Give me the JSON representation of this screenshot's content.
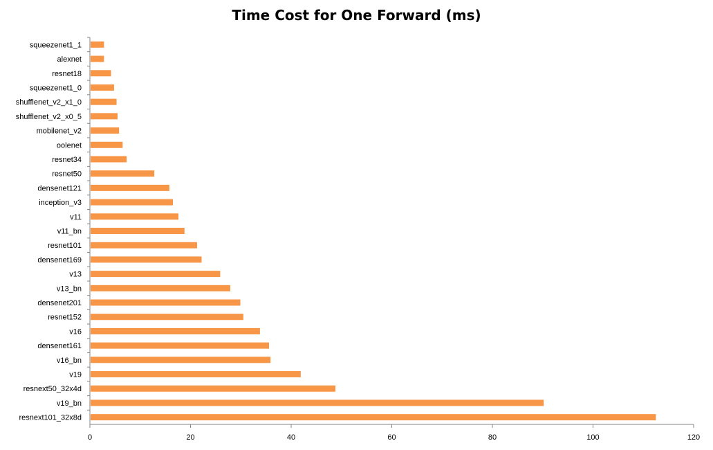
{
  "chart_data": {
    "type": "bar",
    "orientation": "horizontal",
    "title": "Time Cost for One Forward (ms)",
    "xlabel": "",
    "ylabel": "",
    "categories": [
      "squeezenet1_1",
      "alexnet",
      "resnet18",
      "squeezenet1_0",
      "shufflenet_v2_x1_0",
      "shufflenet_v2_x0_5",
      "mobilenet_v2",
      "oolenet",
      "resnet34",
      "resnet50",
      "densenet121",
      "inception_v3",
      "v11",
      "v11_bn",
      "resnet101",
      "densenet169",
      "v13",
      "v13_bn",
      "densenet201",
      "resnet152",
      "v16",
      "densenet161",
      "v16_bn",
      "v19",
      "resnext50_32x4d",
      "v19_bn",
      "resnext101_32x8d"
    ],
    "values": [
      2.8,
      2.8,
      4.2,
      4.8,
      5.3,
      5.5,
      5.8,
      6.5,
      7.3,
      12.8,
      15.8,
      16.5,
      17.6,
      18.8,
      21.3,
      22.2,
      25.9,
      27.9,
      29.9,
      30.5,
      33.8,
      35.6,
      35.9,
      41.9,
      48.8,
      90.2,
      112.5
    ],
    "xlim": [
      0,
      120
    ],
    "xticks": [
      "0",
      "20",
      "40",
      "60",
      "80",
      "100",
      "120"
    ],
    "bar_color": "#F79646",
    "grid": false,
    "legend": "none"
  }
}
